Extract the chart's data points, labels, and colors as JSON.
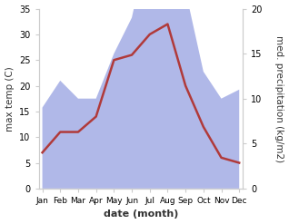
{
  "months": [
    "Jan",
    "Feb",
    "Mar",
    "Apr",
    "May",
    "Jun",
    "Jul",
    "Aug",
    "Sep",
    "Oct",
    "Nov",
    "Dec"
  ],
  "temperature": [
    7,
    11,
    11,
    14,
    25,
    26,
    30,
    32,
    20,
    12,
    6,
    5
  ],
  "precipitation": [
    9,
    12,
    10,
    10,
    15,
    19,
    28,
    32,
    22,
    13,
    10,
    11
  ],
  "temp_color": "#b03a3a",
  "precip_color": "#b0b8e8",
  "temp_ylim_min": 0,
  "temp_ylim_max": 35,
  "precip_ylim_min": 0,
  "precip_ylim_max": 20,
  "precip_scale": 1.75,
  "xlabel": "date (month)",
  "ylabel_left": "max temp (C)",
  "ylabel_right": "med. precipitation (kg/m2)",
  "background_color": "#ffffff",
  "temp_linewidth": 1.8,
  "tick_labelsize": 7,
  "label_fontsize": 7.5,
  "xlabel_fontsize": 8
}
